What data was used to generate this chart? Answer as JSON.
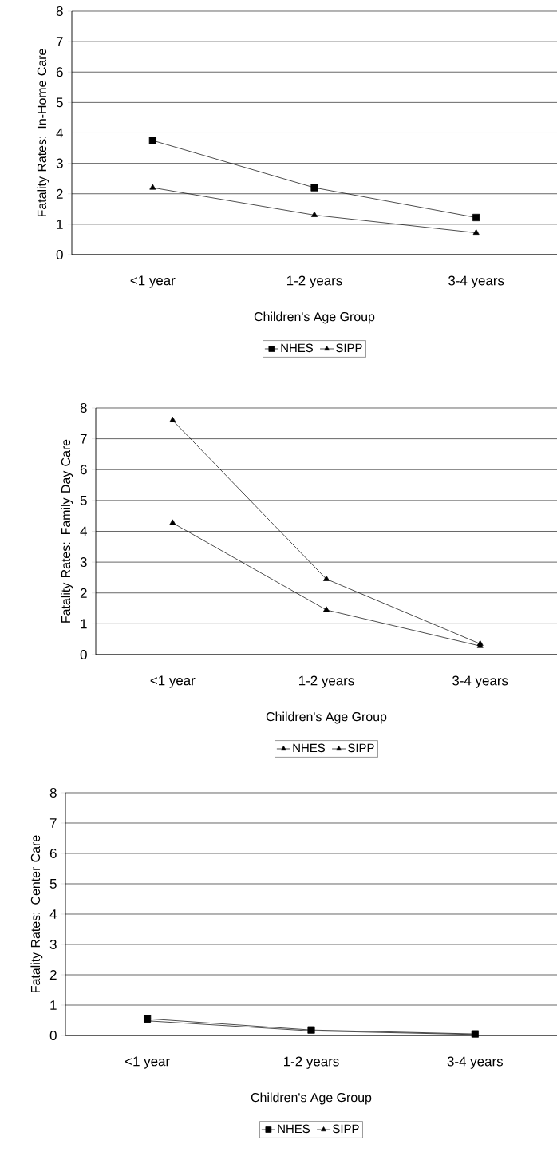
{
  "chart_data": [
    {
      "type": "line",
      "categories": [
        "<1 year",
        "1-2 years",
        "3-4 years"
      ],
      "xlabel": "Children's Age Group",
      "ylabel": "Fatality Rates: In-Home Care",
      "ylim": [
        0,
        8
      ],
      "yticks": [
        0,
        1,
        2,
        3,
        4,
        5,
        6,
        7,
        8
      ],
      "grid": "y",
      "legend": "bottom",
      "series": [
        {
          "name": "NHES",
          "color": "#000000",
          "marker": "square",
          "values": [
            3.75,
            2.2,
            1.22
          ]
        },
        {
          "name": "SIPP",
          "color": "#000000",
          "marker": "triangle",
          "values": [
            2.2,
            1.3,
            0.72
          ]
        }
      ]
    },
    {
      "type": "line",
      "categories": [
        "<1 year",
        "1-2 years",
        "3-4 years"
      ],
      "xlabel": "Children's Age Group",
      "ylabel": "Fatality Rates: Family Day Care",
      "ylim": [
        0,
        8
      ],
      "yticks": [
        0,
        1,
        2,
        3,
        4,
        5,
        6,
        7,
        8
      ],
      "grid": "y",
      "legend": "bottom",
      "series": [
        {
          "name": "NHES",
          "color": "#000000",
          "marker": "triangle",
          "values": [
            7.6,
            2.45,
            0.35
          ]
        },
        {
          "name": "SIPP",
          "color": "#000000",
          "marker": "triangle",
          "values": [
            4.27,
            1.45,
            0.28
          ]
        }
      ]
    },
    {
      "type": "line",
      "categories": [
        "<1 year",
        "1-2 years",
        "3-4 years"
      ],
      "xlabel": "Children's Age Group",
      "ylabel": "Fatality Rates: Center Care",
      "ylim": [
        0,
        8
      ],
      "yticks": [
        0,
        1,
        2,
        3,
        4,
        5,
        6,
        7,
        8
      ],
      "grid": "y",
      "legend": "bottom",
      "series": [
        {
          "name": "NHES",
          "color": "#000000",
          "marker": "square",
          "values": [
            0.55,
            0.18,
            0.05
          ]
        },
        {
          "name": "SIPP",
          "color": "#000000",
          "marker": "triangle",
          "values": [
            0.48,
            0.15,
            0.03
          ]
        }
      ]
    }
  ]
}
